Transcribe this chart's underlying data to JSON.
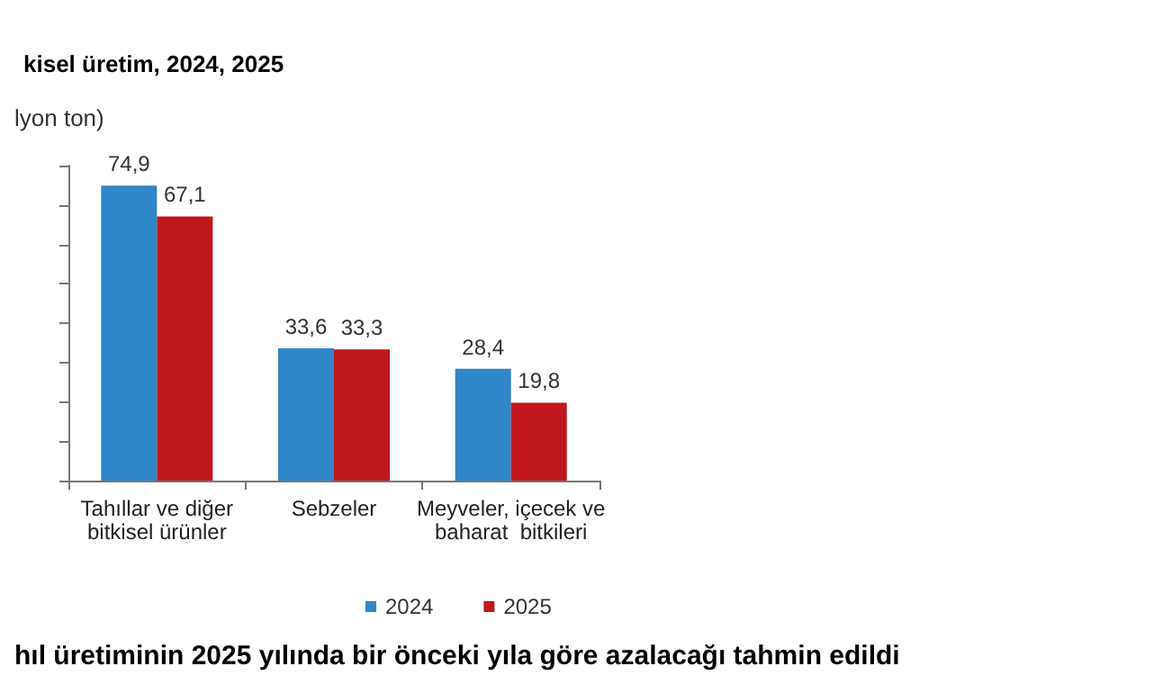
{
  "chart_data": {
    "type": "bar",
    "title": "kisel üretim, 2024, 2025",
    "ylabel": "lyon ton)",
    "categories": [
      "Tahıllar ve diğer\nbitkisel ürünler",
      "Sebzeler",
      "Meyveler, içecek ve\nbaharat  bitkileri"
    ],
    "series": [
      {
        "name": "2024",
        "color": "#2f86c9",
        "values": [
          74.9,
          33.6,
          28.4
        ],
        "value_labels": [
          "74,9",
          "33,6",
          "28,4"
        ]
      },
      {
        "name": "2025",
        "color": "#c0171d",
        "values": [
          67.1,
          33.3,
          19.8
        ],
        "value_labels": [
          "67,1",
          "33,3",
          "19,8"
        ]
      }
    ],
    "tick_labels": "x",
    "legend": "bottom",
    "grid": false,
    "annotations": [
      "hıl üretiminin 2025 yılında bir önceki yıla göre azalacağı tahmin edildi"
    ]
  }
}
